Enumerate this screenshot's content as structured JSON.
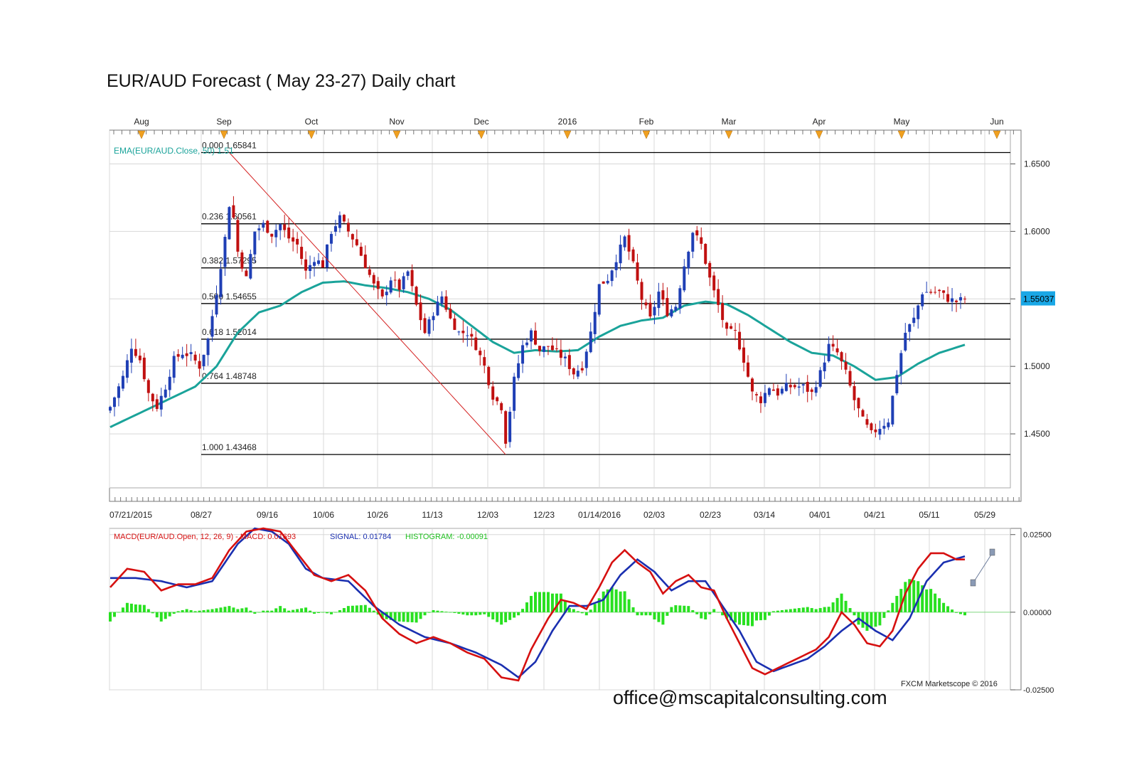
{
  "title": "EUR/AUD Forecast ( May 23-27) Daily chart",
  "footer": "office@mscapitalconsulting.com",
  "colors": {
    "bull": "#1f3fb5",
    "bear": "#c01010",
    "ema": "#1aa39a",
    "macd": "#d61010",
    "signal": "#1a2fb0",
    "histogram": "#28e020",
    "fib": "#000000",
    "trend": "#d42020",
    "grid": "#d8d8d8",
    "price_tag": "#19a7e6"
  },
  "chart_data": [
    {
      "type": "candlestick",
      "name": "price-panel",
      "ylim": [
        1.41,
        1.675
      ],
      "y_ticks": [
        "1.6500",
        "1.6000",
        "1.5500",
        "1.5000",
        "1.4500"
      ],
      "top_month_labels": [
        "Aug",
        "Sep",
        "Oct",
        "Nov",
        "Dec",
        "2016",
        "Feb",
        "Mar",
        "Apr",
        "May",
        "Jun"
      ],
      "x_tick_labels": [
        "07/21/2015",
        "08/27",
        "09/16",
        "10/06",
        "10/26",
        "11/13",
        "12/03",
        "12/23",
        "01/14/2016",
        "02/03",
        "02/23",
        "03/14",
        "04/01",
        "04/21",
        "05/11",
        "05/29"
      ],
      "ema_label": "EMA(EUR/AUD.Close, 50) 1.51",
      "last_price_label": "1.55037",
      "last_price": 1.55037,
      "fibonacci": [
        {
          "label": "0.000 1.65841",
          "value": 1.65841
        },
        {
          "label": "0.236 1.60561",
          "value": 1.60561
        },
        {
          "label": "0.382 1.57295",
          "value": 1.57295
        },
        {
          "label": "0.500 1.54655",
          "value": 1.54655
        },
        {
          "label": "0.618 1.52014",
          "value": 1.52014
        },
        {
          "label": "0.764 1.48748",
          "value": 1.48748
        },
        {
          "label": "1.000 1.43468",
          "value": 1.43468
        }
      ],
      "trendline": {
        "from": [
          28,
          1.65841
        ],
        "to": [
          93,
          1.43468
        ]
      },
      "close_anchors": [
        [
          0,
          1.47
        ],
        [
          3,
          1.492
        ],
        [
          5,
          1.515
        ],
        [
          7,
          1.505
        ],
        [
          9,
          1.48
        ],
        [
          11,
          1.47
        ],
        [
          13,
          1.485
        ],
        [
          15,
          1.505
        ],
        [
          17,
          1.51
        ],
        [
          19,
          1.508
        ],
        [
          21,
          1.5
        ],
        [
          23,
          1.52
        ],
        [
          25,
          1.555
        ],
        [
          27,
          1.595
        ],
        [
          28,
          1.62
        ],
        [
          29,
          1.61
        ],
        [
          30,
          1.585
        ],
        [
          32,
          1.565
        ],
        [
          34,
          1.6
        ],
        [
          36,
          1.605
        ],
        [
          38,
          1.598
        ],
        [
          40,
          1.605
        ],
        [
          42,
          1.595
        ],
        [
          44,
          1.59
        ],
        [
          46,
          1.57
        ],
        [
          48,
          1.58
        ],
        [
          50,
          1.575
        ],
        [
          52,
          1.6
        ],
        [
          54,
          1.61
        ],
        [
          56,
          1.6
        ],
        [
          58,
          1.59
        ],
        [
          60,
          1.575
        ],
        [
          62,
          1.56
        ],
        [
          64,
          1.55
        ],
        [
          66,
          1.565
        ],
        [
          68,
          1.558
        ],
        [
          70,
          1.57
        ],
        [
          72,
          1.545
        ],
        [
          74,
          1.525
        ],
        [
          76,
          1.54
        ],
        [
          78,
          1.552
        ],
        [
          80,
          1.535
        ],
        [
          82,
          1.525
        ],
        [
          84,
          1.525
        ],
        [
          86,
          1.515
        ],
        [
          88,
          1.5
        ],
        [
          90,
          1.478
        ],
        [
          92,
          1.47
        ],
        [
          93,
          1.445
        ],
        [
          95,
          1.49
        ],
        [
          97,
          1.515
        ],
        [
          99,
          1.525
        ],
        [
          101,
          1.512
        ],
        [
          103,
          1.515
        ],
        [
          105,
          1.51
        ],
        [
          107,
          1.505
        ],
        [
          109,
          1.495
        ],
        [
          111,
          1.5
        ],
        [
          113,
          1.525
        ],
        [
          115,
          1.56
        ],
        [
          117,
          1.565
        ],
        [
          119,
          1.58
        ],
        [
          121,
          1.595
        ],
        [
          123,
          1.575
        ],
        [
          125,
          1.55
        ],
        [
          127,
          1.535
        ],
        [
          129,
          1.555
        ],
        [
          131,
          1.54
        ],
        [
          133,
          1.545
        ],
        [
          135,
          1.575
        ],
        [
          137,
          1.6
        ],
        [
          139,
          1.59
        ],
        [
          141,
          1.565
        ],
        [
          143,
          1.545
        ],
        [
          145,
          1.525
        ],
        [
          147,
          1.525
        ],
        [
          149,
          1.505
        ],
        [
          151,
          1.48
        ],
        [
          153,
          1.475
        ],
        [
          155,
          1.485
        ],
        [
          157,
          1.48
        ],
        [
          159,
          1.485
        ],
        [
          161,
          1.485
        ],
        [
          163,
          1.485
        ],
        [
          165,
          1.48
        ],
        [
          167,
          1.495
        ],
        [
          169,
          1.515
        ],
        [
          171,
          1.51
        ],
        [
          173,
          1.495
        ],
        [
          175,
          1.475
        ],
        [
          177,
          1.46
        ],
        [
          179,
          1.45
        ],
        [
          181,
          1.455
        ],
        [
          183,
          1.46
        ],
        [
          185,
          1.495
        ],
        [
          187,
          1.525
        ],
        [
          189,
          1.535
        ],
        [
          191,
          1.555
        ],
        [
          193,
          1.555
        ],
        [
          195,
          1.555
        ],
        [
          197,
          1.55
        ],
        [
          199,
          1.548
        ],
        [
          201,
          1.55
        ]
      ],
      "ema_anchors": [
        [
          0,
          1.455
        ],
        [
          10,
          1.47
        ],
        [
          20,
          1.485
        ],
        [
          25,
          1.5
        ],
        [
          30,
          1.525
        ],
        [
          35,
          1.54
        ],
        [
          40,
          1.545
        ],
        [
          45,
          1.555
        ],
        [
          50,
          1.562
        ],
        [
          55,
          1.563
        ],
        [
          60,
          1.56
        ],
        [
          65,
          1.558
        ],
        [
          70,
          1.555
        ],
        [
          75,
          1.55
        ],
        [
          80,
          1.542
        ],
        [
          85,
          1.53
        ],
        [
          90,
          1.518
        ],
        [
          95,
          1.51
        ],
        [
          100,
          1.512
        ],
        [
          105,
          1.511
        ],
        [
          110,
          1.512
        ],
        [
          115,
          1.522
        ],
        [
          120,
          1.53
        ],
        [
          125,
          1.534
        ],
        [
          130,
          1.536
        ],
        [
          135,
          1.545
        ],
        [
          140,
          1.548
        ],
        [
          145,
          1.546
        ],
        [
          150,
          1.538
        ],
        [
          155,
          1.528
        ],
        [
          160,
          1.518
        ],
        [
          165,
          1.51
        ],
        [
          170,
          1.508
        ],
        [
          175,
          1.5
        ],
        [
          180,
          1.49
        ],
        [
          185,
          1.492
        ],
        [
          190,
          1.502
        ],
        [
          195,
          1.51
        ],
        [
          201,
          1.516
        ]
      ]
    },
    {
      "type": "line",
      "name": "macd-panel",
      "indicator_label": "MACD(EUR/AUD.Open, 12, 26, 9) -  MACD: 0.01693",
      "signal_label": "SIGNAL: 0.01784",
      "histogram_label": "HISTOGRAM: -0.00091",
      "ylim": [
        -0.025,
        0.027
      ],
      "y_ticks": [
        "0.02500",
        "0.00000",
        "-0.02500"
      ],
      "credit": "FXCM Marketscope © 2016",
      "macd_anchors": [
        [
          0,
          0.008
        ],
        [
          4,
          0.014
        ],
        [
          8,
          0.013
        ],
        [
          12,
          0.007
        ],
        [
          16,
          0.009
        ],
        [
          20,
          0.009
        ],
        [
          24,
          0.011
        ],
        [
          28,
          0.02
        ],
        [
          32,
          0.026
        ],
        [
          36,
          0.027
        ],
        [
          40,
          0.026
        ],
        [
          44,
          0.019
        ],
        [
          48,
          0.012
        ],
        [
          52,
          0.01
        ],
        [
          56,
          0.012
        ],
        [
          60,
          0.007
        ],
        [
          64,
          -0.002
        ],
        [
          68,
          -0.007
        ],
        [
          72,
          -0.01
        ],
        [
          76,
          -0.008
        ],
        [
          80,
          -0.01
        ],
        [
          84,
          -0.013
        ],
        [
          88,
          -0.015
        ],
        [
          92,
          -0.021
        ],
        [
          96,
          -0.022
        ],
        [
          99,
          -0.012
        ],
        [
          103,
          -0.002
        ],
        [
          106,
          0.004
        ],
        [
          109,
          0.003
        ],
        [
          112,
          0.001
        ],
        [
          115,
          0.008
        ],
        [
          118,
          0.016
        ],
        [
          121,
          0.02
        ],
        [
          124,
          0.016
        ],
        [
          127,
          0.013
        ],
        [
          130,
          0.006
        ],
        [
          133,
          0.01
        ],
        [
          136,
          0.012
        ],
        [
          139,
          0.008
        ],
        [
          142,
          0.007
        ],
        [
          145,
          -0.002
        ],
        [
          148,
          -0.01
        ],
        [
          151,
          -0.018
        ],
        [
          154,
          -0.02
        ],
        [
          157,
          -0.018
        ],
        [
          160,
          -0.016
        ],
        [
          163,
          -0.014
        ],
        [
          166,
          -0.012
        ],
        [
          169,
          -0.008
        ],
        [
          172,
          0.0
        ],
        [
          175,
          -0.004
        ],
        [
          178,
          -0.01
        ],
        [
          181,
          -0.011
        ],
        [
          184,
          -0.006
        ],
        [
          187,
          0.006
        ],
        [
          190,
          0.014
        ],
        [
          193,
          0.019
        ],
        [
          196,
          0.019
        ],
        [
          199,
          0.017
        ],
        [
          201,
          0.017
        ]
      ],
      "signal_anchors": [
        [
          0,
          0.011
        ],
        [
          6,
          0.011
        ],
        [
          12,
          0.01
        ],
        [
          18,
          0.008
        ],
        [
          24,
          0.01
        ],
        [
          30,
          0.022
        ],
        [
          34,
          0.027
        ],
        [
          38,
          0.026
        ],
        [
          42,
          0.022
        ],
        [
          46,
          0.014
        ],
        [
          50,
          0.011
        ],
        [
          56,
          0.01
        ],
        [
          62,
          0.002
        ],
        [
          68,
          -0.004
        ],
        [
          74,
          -0.008
        ],
        [
          80,
          -0.01
        ],
        [
          86,
          -0.013
        ],
        [
          92,
          -0.017
        ],
        [
          96,
          -0.021
        ],
        [
          100,
          -0.016
        ],
        [
          104,
          -0.006
        ],
        [
          108,
          0.002
        ],
        [
          112,
          0.002
        ],
        [
          116,
          0.004
        ],
        [
          120,
          0.012
        ],
        [
          124,
          0.017
        ],
        [
          128,
          0.013
        ],
        [
          132,
          0.007
        ],
        [
          136,
          0.01
        ],
        [
          140,
          0.01
        ],
        [
          144,
          0.002
        ],
        [
          148,
          -0.006
        ],
        [
          152,
          -0.016
        ],
        [
          156,
          -0.019
        ],
        [
          160,
          -0.017
        ],
        [
          164,
          -0.015
        ],
        [
          168,
          -0.011
        ],
        [
          172,
          -0.006
        ],
        [
          176,
          -0.002
        ],
        [
          180,
          -0.006
        ],
        [
          184,
          -0.009
        ],
        [
          188,
          -0.002
        ],
        [
          192,
          0.01
        ],
        [
          196,
          0.016
        ],
        [
          201,
          0.018
        ]
      ]
    }
  ]
}
